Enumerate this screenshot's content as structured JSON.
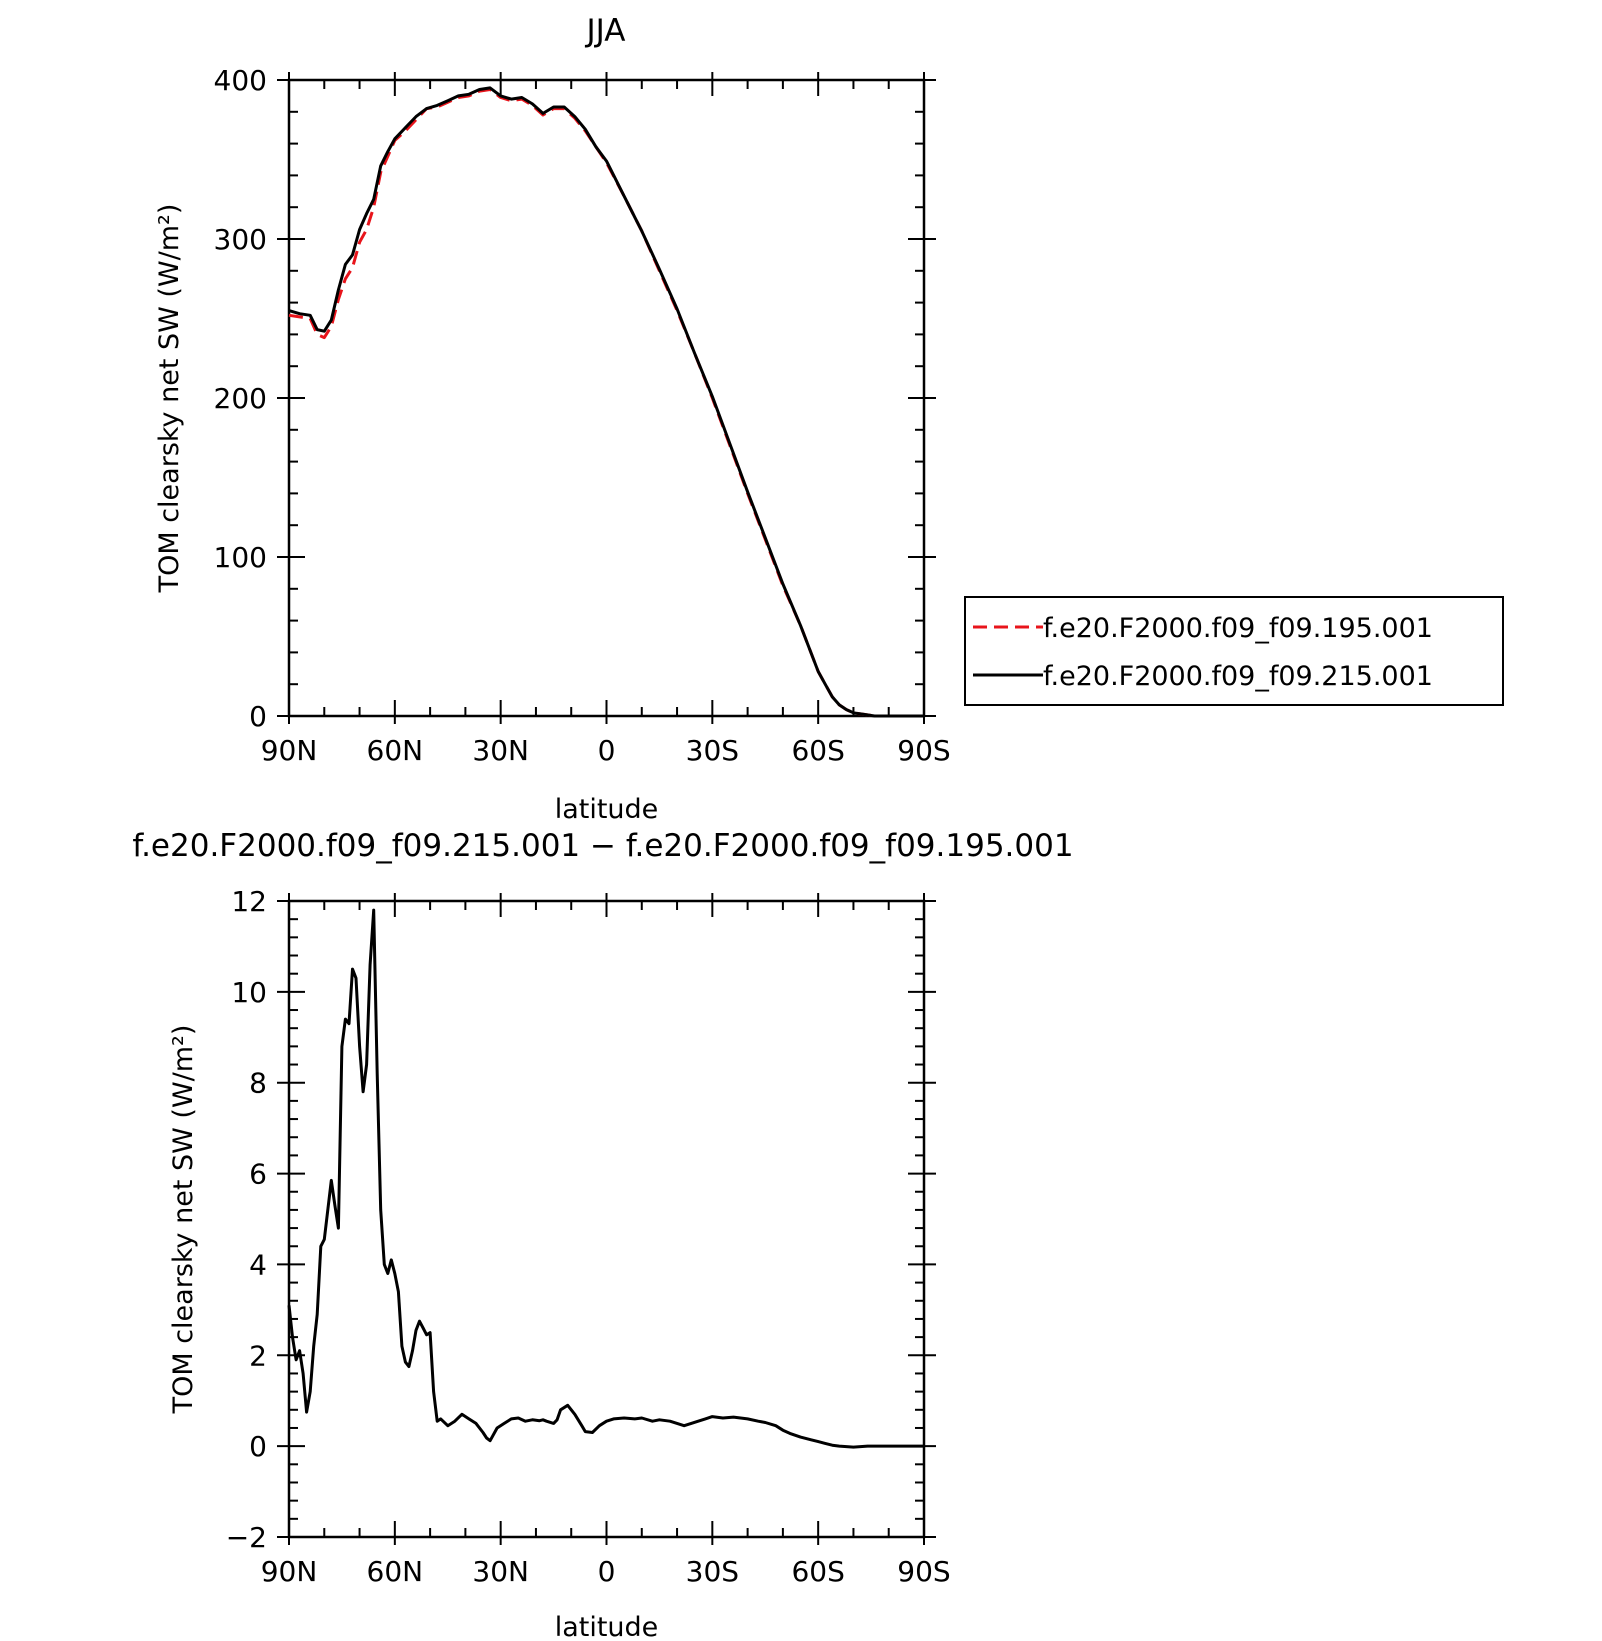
{
  "chart_data": [
    {
      "type": "line",
      "title": "JJA",
      "xlabel": "latitude",
      "ylabel": "TOM clearsky net SW (W/m²)",
      "xlim": [
        90,
        -90
      ],
      "ylim": [
        0,
        400
      ],
      "x_ticks": [
        {
          "value": 90,
          "label": "90N"
        },
        {
          "value": 60,
          "label": "60N"
        },
        {
          "value": 30,
          "label": "30N"
        },
        {
          "value": 0,
          "label": "0"
        },
        {
          "value": -30,
          "label": "30S"
        },
        {
          "value": -60,
          "label": "60S"
        },
        {
          "value": -90,
          "label": "90S"
        }
      ],
      "y_ticks": [
        {
          "value": 0,
          "label": "0"
        },
        {
          "value": 100,
          "label": "100"
        },
        {
          "value": 200,
          "label": "200"
        },
        {
          "value": 300,
          "label": "300"
        },
        {
          "value": 400,
          "label": "400"
        }
      ],
      "legend_position": "right",
      "series": [
        {
          "name": "f.e20.F2000.f09_f09.195.001",
          "color": "#e8141b",
          "dash": "dashed",
          "x": [
            90,
            87,
            84,
            82,
            80,
            78,
            76,
            74,
            72,
            70,
            68,
            66,
            64,
            62,
            60,
            57,
            54,
            51,
            48,
            45,
            42,
            39,
            36,
            33,
            30,
            27,
            24,
            21,
            18,
            15,
            12,
            9,
            6,
            3,
            0,
            -5,
            -10,
            -15,
            -20,
            -25,
            -30,
            -35,
            -40,
            -45,
            -50,
            -55,
            -60,
            -62,
            -64,
            -66,
            -68,
            -70,
            -73,
            -76,
            -80,
            -85,
            -90
          ],
          "y": [
            252,
            251,
            250,
            240,
            238,
            245,
            262,
            275,
            282,
            298,
            306,
            320,
            342,
            352,
            362,
            368,
            375,
            382,
            383,
            386,
            389,
            390,
            393,
            394,
            389,
            387,
            388,
            384,
            378,
            382,
            382,
            376,
            368,
            358,
            348,
            327,
            305,
            280,
            255,
            228,
            200,
            170,
            140,
            111,
            82,
            57,
            28,
            20,
            12,
            7,
            4,
            2,
            1,
            0,
            0,
            0,
            0
          ]
        },
        {
          "name": "f.e20.F2000.f09_f09.215.001",
          "color": "#000000",
          "dash": "solid",
          "x": [
            90,
            87,
            84,
            82,
            80,
            78,
            76,
            74,
            72,
            70,
            68,
            66,
            64,
            62,
            60,
            57,
            54,
            51,
            48,
            45,
            42,
            39,
            36,
            33,
            30,
            27,
            24,
            21,
            18,
            15,
            12,
            9,
            6,
            3,
            0,
            -5,
            -10,
            -15,
            -20,
            -25,
            -30,
            -35,
            -40,
            -45,
            -50,
            -55,
            -60,
            -62,
            -64,
            -66,
            -68,
            -70,
            -73,
            -76,
            -80,
            -85,
            -90
          ],
          "y": [
            255,
            253,
            252,
            243,
            242,
            249,
            268,
            284,
            290,
            306,
            316,
            325,
            346,
            355,
            363,
            370,
            377,
            382,
            384,
            387,
            390,
            391,
            394,
            395,
            390,
            388,
            389,
            385,
            379,
            383,
            383,
            377,
            369,
            358,
            349,
            327,
            305,
            281,
            256,
            228,
            201,
            171,
            141,
            112,
            83,
            57,
            28,
            20,
            12,
            7,
            4,
            2,
            1,
            0,
            0,
            0,
            0
          ]
        }
      ]
    },
    {
      "type": "line",
      "title": "f.e20.F2000.f09_f09.215.001 − f.e20.F2000.f09_f09.195.001",
      "xlabel": "latitude",
      "ylabel": "TOM clearsky net SW (W/m²)",
      "xlim": [
        90,
        -90
      ],
      "ylim": [
        -2,
        12
      ],
      "x_ticks": [
        {
          "value": 90,
          "label": "90N"
        },
        {
          "value": 60,
          "label": "60N"
        },
        {
          "value": 30,
          "label": "30N"
        },
        {
          "value": 0,
          "label": "0"
        },
        {
          "value": -30,
          "label": "30S"
        },
        {
          "value": -60,
          "label": "60S"
        },
        {
          "value": -90,
          "label": "90S"
        }
      ],
      "y_ticks": [
        {
          "value": -2,
          "label": "−2"
        },
        {
          "value": 0,
          "label": "0"
        },
        {
          "value": 2,
          "label": "2"
        },
        {
          "value": 4,
          "label": "4"
        },
        {
          "value": 6,
          "label": "6"
        },
        {
          "value": 8,
          "label": "8"
        },
        {
          "value": 10,
          "label": "10"
        },
        {
          "value": 12,
          "label": "12"
        }
      ],
      "series": [
        {
          "color": "#000000",
          "x": [
            90,
            89,
            88,
            87,
            86,
            85,
            84,
            83,
            82,
            81,
            80,
            79,
            78,
            77,
            76,
            75,
            74,
            73,
            72,
            71,
            70,
            69,
            68,
            67,
            66,
            65,
            64,
            63,
            62,
            61,
            60,
            59,
            58,
            57,
            56,
            55,
            54,
            53,
            52,
            51,
            50,
            49,
            48,
            47,
            45,
            43,
            41,
            39,
            37,
            35,
            34,
            33,
            31,
            29,
            27,
            25,
            23,
            21,
            19,
            18,
            17,
            15,
            14,
            13,
            11,
            9,
            7,
            6,
            4,
            2,
            0,
            -2,
            -5,
            -8,
            -10,
            -13,
            -15,
            -18,
            -20,
            -22,
            -24,
            -26,
            -28,
            -30,
            -33,
            -36,
            -40,
            -43,
            -45,
            -48,
            -50,
            -52,
            -55,
            -58,
            -60,
            -62,
            -64,
            -66,
            -68,
            -70,
            -74,
            -78,
            -82,
            -86,
            -90
          ],
          "y": [
            3.1,
            2.4,
            1.9,
            2.1,
            1.6,
            0.75,
            1.2,
            2.2,
            2.9,
            4.4,
            4.55,
            5.2,
            5.85,
            5.3,
            4.8,
            8.8,
            9.4,
            9.3,
            10.5,
            10.3,
            8.8,
            7.8,
            8.4,
            10.6,
            11.8,
            8.2,
            5.2,
            4.0,
            3.8,
            4.1,
            3.8,
            3.4,
            2.2,
            1.85,
            1.75,
            2.1,
            2.55,
            2.75,
            2.6,
            2.45,
            2.5,
            1.2,
            0.55,
            0.6,
            0.45,
            0.55,
            0.7,
            0.6,
            0.5,
            0.3,
            0.18,
            0.12,
            0.4,
            0.5,
            0.6,
            0.62,
            0.55,
            0.58,
            0.56,
            0.58,
            0.55,
            0.5,
            0.58,
            0.8,
            0.9,
            0.7,
            0.45,
            0.32,
            0.3,
            0.45,
            0.55,
            0.6,
            0.62,
            0.6,
            0.62,
            0.55,
            0.58,
            0.55,
            0.5,
            0.45,
            0.5,
            0.55,
            0.6,
            0.65,
            0.62,
            0.64,
            0.6,
            0.55,
            0.52,
            0.45,
            0.35,
            0.28,
            0.2,
            0.14,
            0.1,
            0.06,
            0.02,
            0.0,
            -0.01,
            -0.02,
            0.0,
            0.0,
            0.0,
            0.0,
            0.0
          ]
        }
      ]
    }
  ]
}
